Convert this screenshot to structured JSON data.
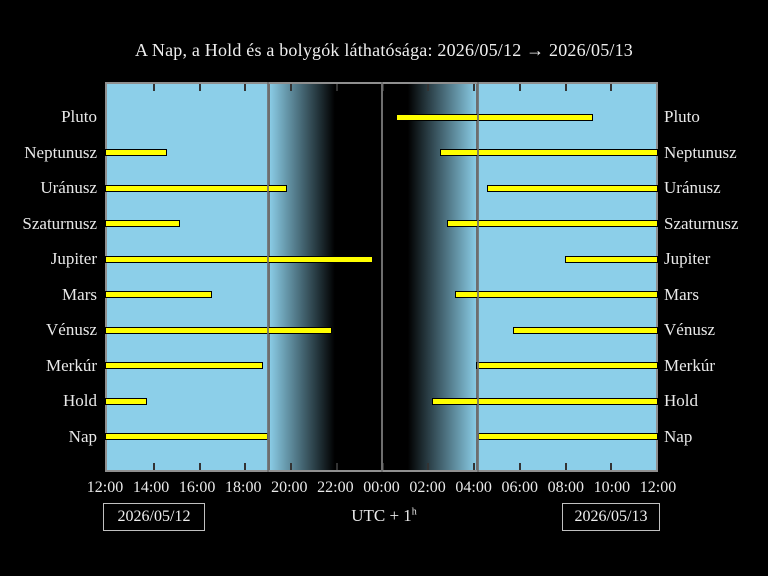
{
  "title": "A Nap, a Hold és a bolygók láthatósága: 2026/05/12 → 2026/05/13",
  "footer": {
    "left_date": "2026/05/12",
    "right_date": "2026/05/13",
    "tz_label": "UTC + 1",
    "tz_sup": "h"
  },
  "chart_data": {
    "type": "bar",
    "subtype": "horizontal-visibility-gantt",
    "x_axis": {
      "origin": "12:00 local (UTC+1) on 2026/05/12",
      "span_hours": 24,
      "tick_step_hours": 2,
      "tick_labels": [
        "12:00",
        "14:00",
        "16:00",
        "18:00",
        "20:00",
        "22:00",
        "00:00",
        "02:00",
        "04:00",
        "06:00",
        "08:00",
        "10:00",
        "12:00"
      ]
    },
    "day_night": {
      "comment_units": "decimal hours after 12:00",
      "sunset": 7.07,
      "dusk_end": 9.96,
      "midnight": 12.0,
      "dawn_start": 13.15,
      "sunrise": 16.19
    },
    "rows": [
      {
        "label": "Pluto",
        "segments": [
          [
            12.63,
            21.18
          ]
        ]
      },
      {
        "label": "Neptunusz",
        "segments": [
          [
            0,
            2.7
          ],
          [
            14.54,
            24
          ]
        ]
      },
      {
        "label": "Uránusz",
        "segments": [
          [
            0,
            7.9
          ],
          [
            16.58,
            24
          ]
        ]
      },
      {
        "label": "Szaturnusz",
        "segments": [
          [
            0,
            3.26
          ],
          [
            14.84,
            24
          ]
        ]
      },
      {
        "label": "Jupiter",
        "segments": [
          [
            0,
            11.63
          ],
          [
            19.97,
            24
          ]
        ]
      },
      {
        "label": "Mars",
        "segments": [
          [
            0,
            4.64
          ],
          [
            15.19,
            24
          ]
        ]
      },
      {
        "label": "Vénusz",
        "segments": [
          [
            0,
            9.85
          ],
          [
            17.71,
            24
          ]
        ]
      },
      {
        "label": "Merkúr",
        "segments": [
          [
            0,
            6.86
          ],
          [
            16.1,
            24
          ]
        ]
      },
      {
        "label": "Hold",
        "segments": [
          [
            0,
            1.82
          ],
          [
            14.19,
            24
          ]
        ]
      },
      {
        "label": "Nap",
        "segments": [
          [
            0,
            7.07
          ],
          [
            16.19,
            24
          ]
        ]
      }
    ],
    "legend": "none",
    "grid": "vertical lines at sunset, midnight, sunrise",
    "colors": {
      "day_sky": "#8ccfe9",
      "night_sky": "#000000",
      "bar_fill": "#ffff00",
      "bar_border": "#000000",
      "event_line": "#6e6e6e",
      "plot_border": "#8f8f8f",
      "text": "#e9e9e9"
    }
  }
}
